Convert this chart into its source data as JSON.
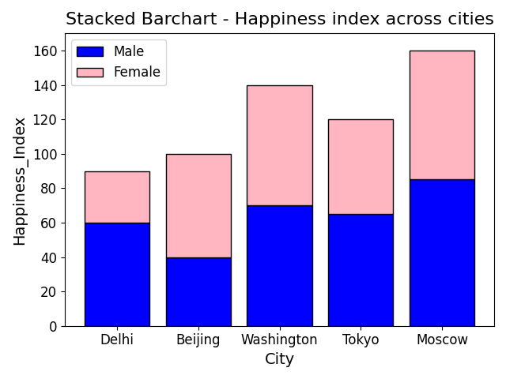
{
  "title": "Stacked Barchart - Happiness index across cities",
  "xlabel": "City",
  "ylabel": "Happiness_Index",
  "cities": [
    "Delhi",
    "Beijing",
    "Washington",
    "Tokyo",
    "Moscow"
  ],
  "male_values": [
    60,
    40,
    70,
    65,
    85
  ],
  "female_values": [
    30,
    60,
    70,
    55,
    75
  ],
  "male_color": "blue",
  "female_color": "#ffb6c1",
  "male_label": "Male",
  "female_label": "Female",
  "ylim": [
    0,
    170
  ],
  "title_fontsize": 16,
  "title_fontweight": "normal",
  "axis_label_fontsize": 14,
  "axis_label_fontweight": "normal",
  "tick_fontsize": 12,
  "legend_fontsize": 12,
  "bar_edgecolor": "black",
  "bar_width": 0.8,
  "figsize": [
    6.4,
    4.8
  ],
  "dpi": 100
}
